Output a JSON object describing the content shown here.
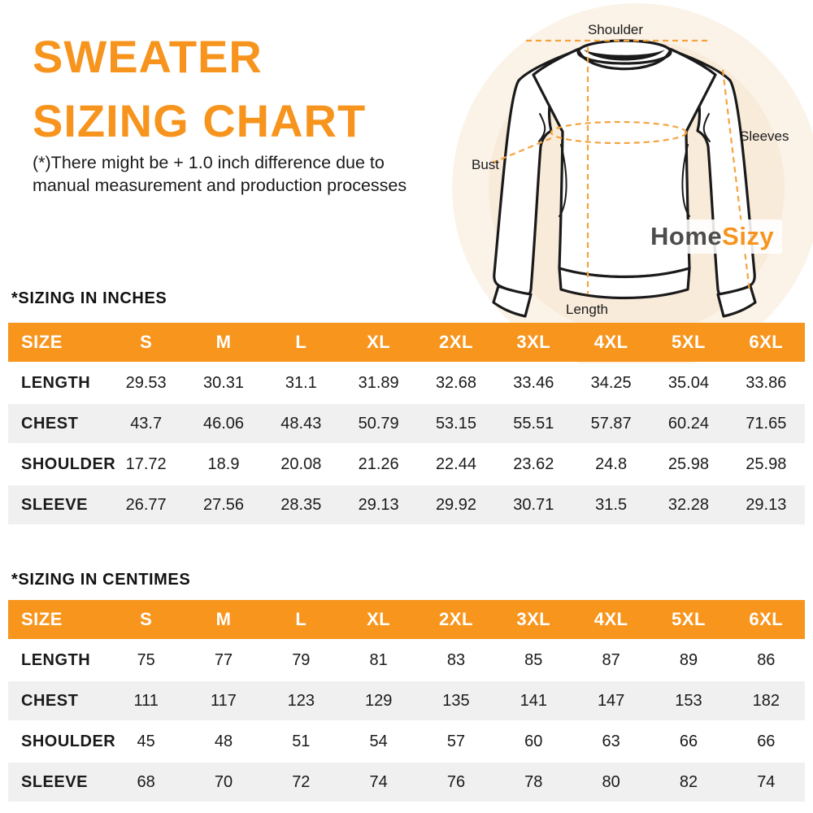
{
  "page": {
    "title_line1": "SWEATER",
    "title_line2": "SIZING CHART",
    "disclaimer_line1": "(*)There might be + 1.0 inch difference due to",
    "disclaimer_line2": "manual measurement and production processes"
  },
  "diagram": {
    "shoulder_label": "Shoulder",
    "sleeves_label": "Sleeves",
    "bust_label": "Bust",
    "length_label": "Length",
    "logo_home": "Home",
    "logo_sizy": "Sizy"
  },
  "colors": {
    "accent_orange": "#F7941D",
    "table_header_bg": "#F8951D",
    "row_alt_bg": "#F0F0F0",
    "circle_outer": "#FBF3E8",
    "circle_inner": "#F8EBDA",
    "logo_home_gray": "#4D4D4D"
  },
  "tables": [
    {
      "section_title": "*SIZING IN INCHES",
      "header": [
        "SIZE",
        "S",
        "M",
        "L",
        "XL",
        "2XL",
        "3XL",
        "4XL",
        "5XL",
        "6XL"
      ],
      "rows": [
        {
          "label": "LENGTH",
          "values": [
            "29.53",
            "30.31",
            "31.1",
            "31.89",
            "32.68",
            "33.46",
            "34.25",
            "35.04",
            "33.86"
          ]
        },
        {
          "label": "CHEST",
          "values": [
            "43.7",
            "46.06",
            "48.43",
            "50.79",
            "53.15",
            "55.51",
            "57.87",
            "60.24",
            "71.65"
          ]
        },
        {
          "label": "SHOULDER",
          "values": [
            "17.72",
            "18.9",
            "20.08",
            "21.26",
            "22.44",
            "23.62",
            "24.8",
            "25.98",
            "25.98"
          ]
        },
        {
          "label": "SLEEVE",
          "values": [
            "26.77",
            "27.56",
            "28.35",
            "29.13",
            "29.92",
            "30.71",
            "31.5",
            "32.28",
            "29.13"
          ]
        }
      ]
    },
    {
      "section_title": "*SIZING IN CENTIMES",
      "header": [
        "SIZE",
        "S",
        "M",
        "L",
        "XL",
        "2XL",
        "3XL",
        "4XL",
        "5XL",
        "6XL"
      ],
      "rows": [
        {
          "label": "LENGTH",
          "values": [
            "75",
            "77",
            "79",
            "81",
            "83",
            "85",
            "87",
            "89",
            "86"
          ]
        },
        {
          "label": "CHEST",
          "values": [
            "111",
            "117",
            "123",
            "129",
            "135",
            "141",
            "147",
            "153",
            "182"
          ]
        },
        {
          "label": "SHOULDER",
          "values": [
            "45",
            "48",
            "51",
            "54",
            "57",
            "60",
            "63",
            "66",
            "66"
          ]
        },
        {
          "label": "SLEEVE",
          "values": [
            "68",
            "70",
            "72",
            "74",
            "76",
            "78",
            "80",
            "82",
            "74"
          ]
        }
      ]
    }
  ]
}
